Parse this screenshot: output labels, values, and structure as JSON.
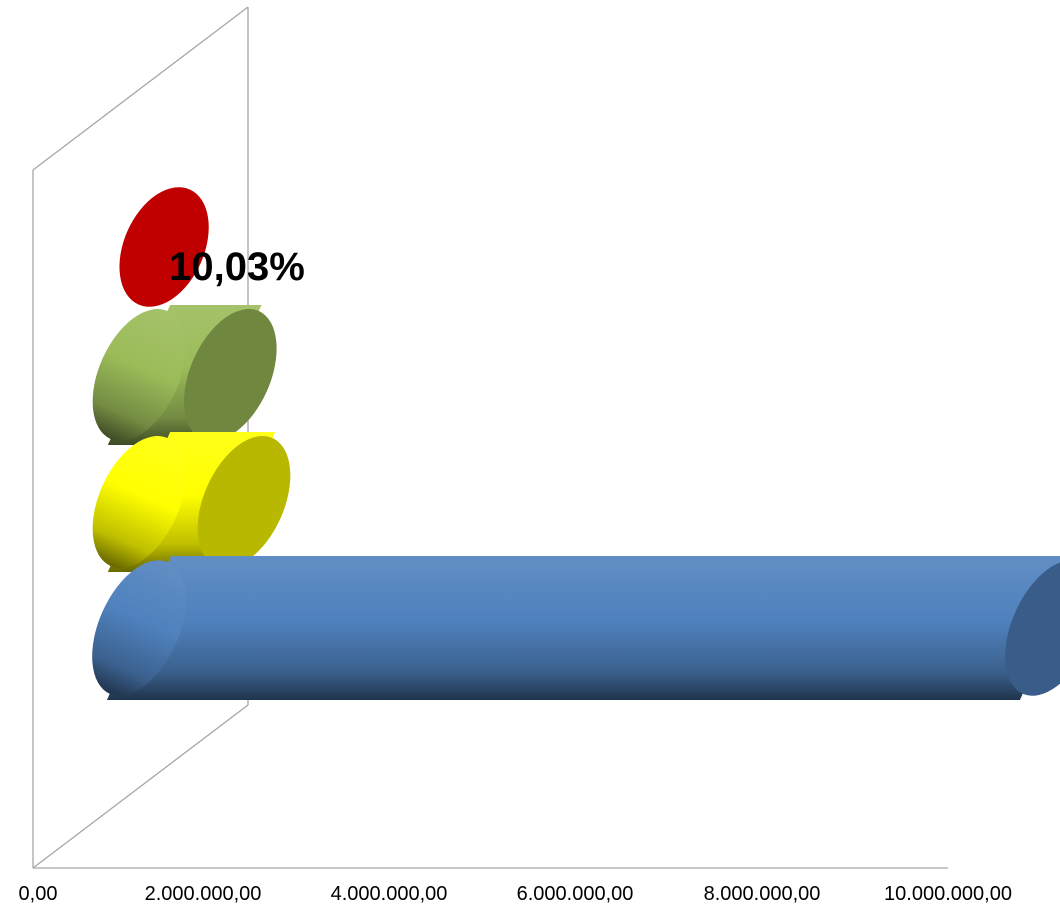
{
  "chart_data": {
    "type": "bar",
    "orientation": "horizontal",
    "style": "3d-cylinder",
    "categories": [
      "",
      "",
      "",
      ""
    ],
    "series": [
      {
        "values": [
          10000000,
          1150000,
          1000000,
          550000
        ],
        "colors": [
          "#4f81bd",
          "#ffff00",
          "#9bbb59",
          "#c00000"
        ]
      }
    ],
    "x_ticks": [
      "0,00",
      "2.000.000,00",
      "4.000.000,00",
      "6.000.000,00",
      "8.000.000,00",
      "10.000.000,00"
    ],
    "x_tick_values": [
      0,
      2000000,
      4000000,
      6000000,
      8000000,
      10000000
    ],
    "xlim": [
      0,
      10000000
    ],
    "data_labels": [
      {
        "series_index": 0,
        "point_index": 3,
        "text": "10,03%"
      }
    ],
    "grid": false,
    "legend": "none",
    "title": "",
    "xlabel": "",
    "ylabel": ""
  }
}
